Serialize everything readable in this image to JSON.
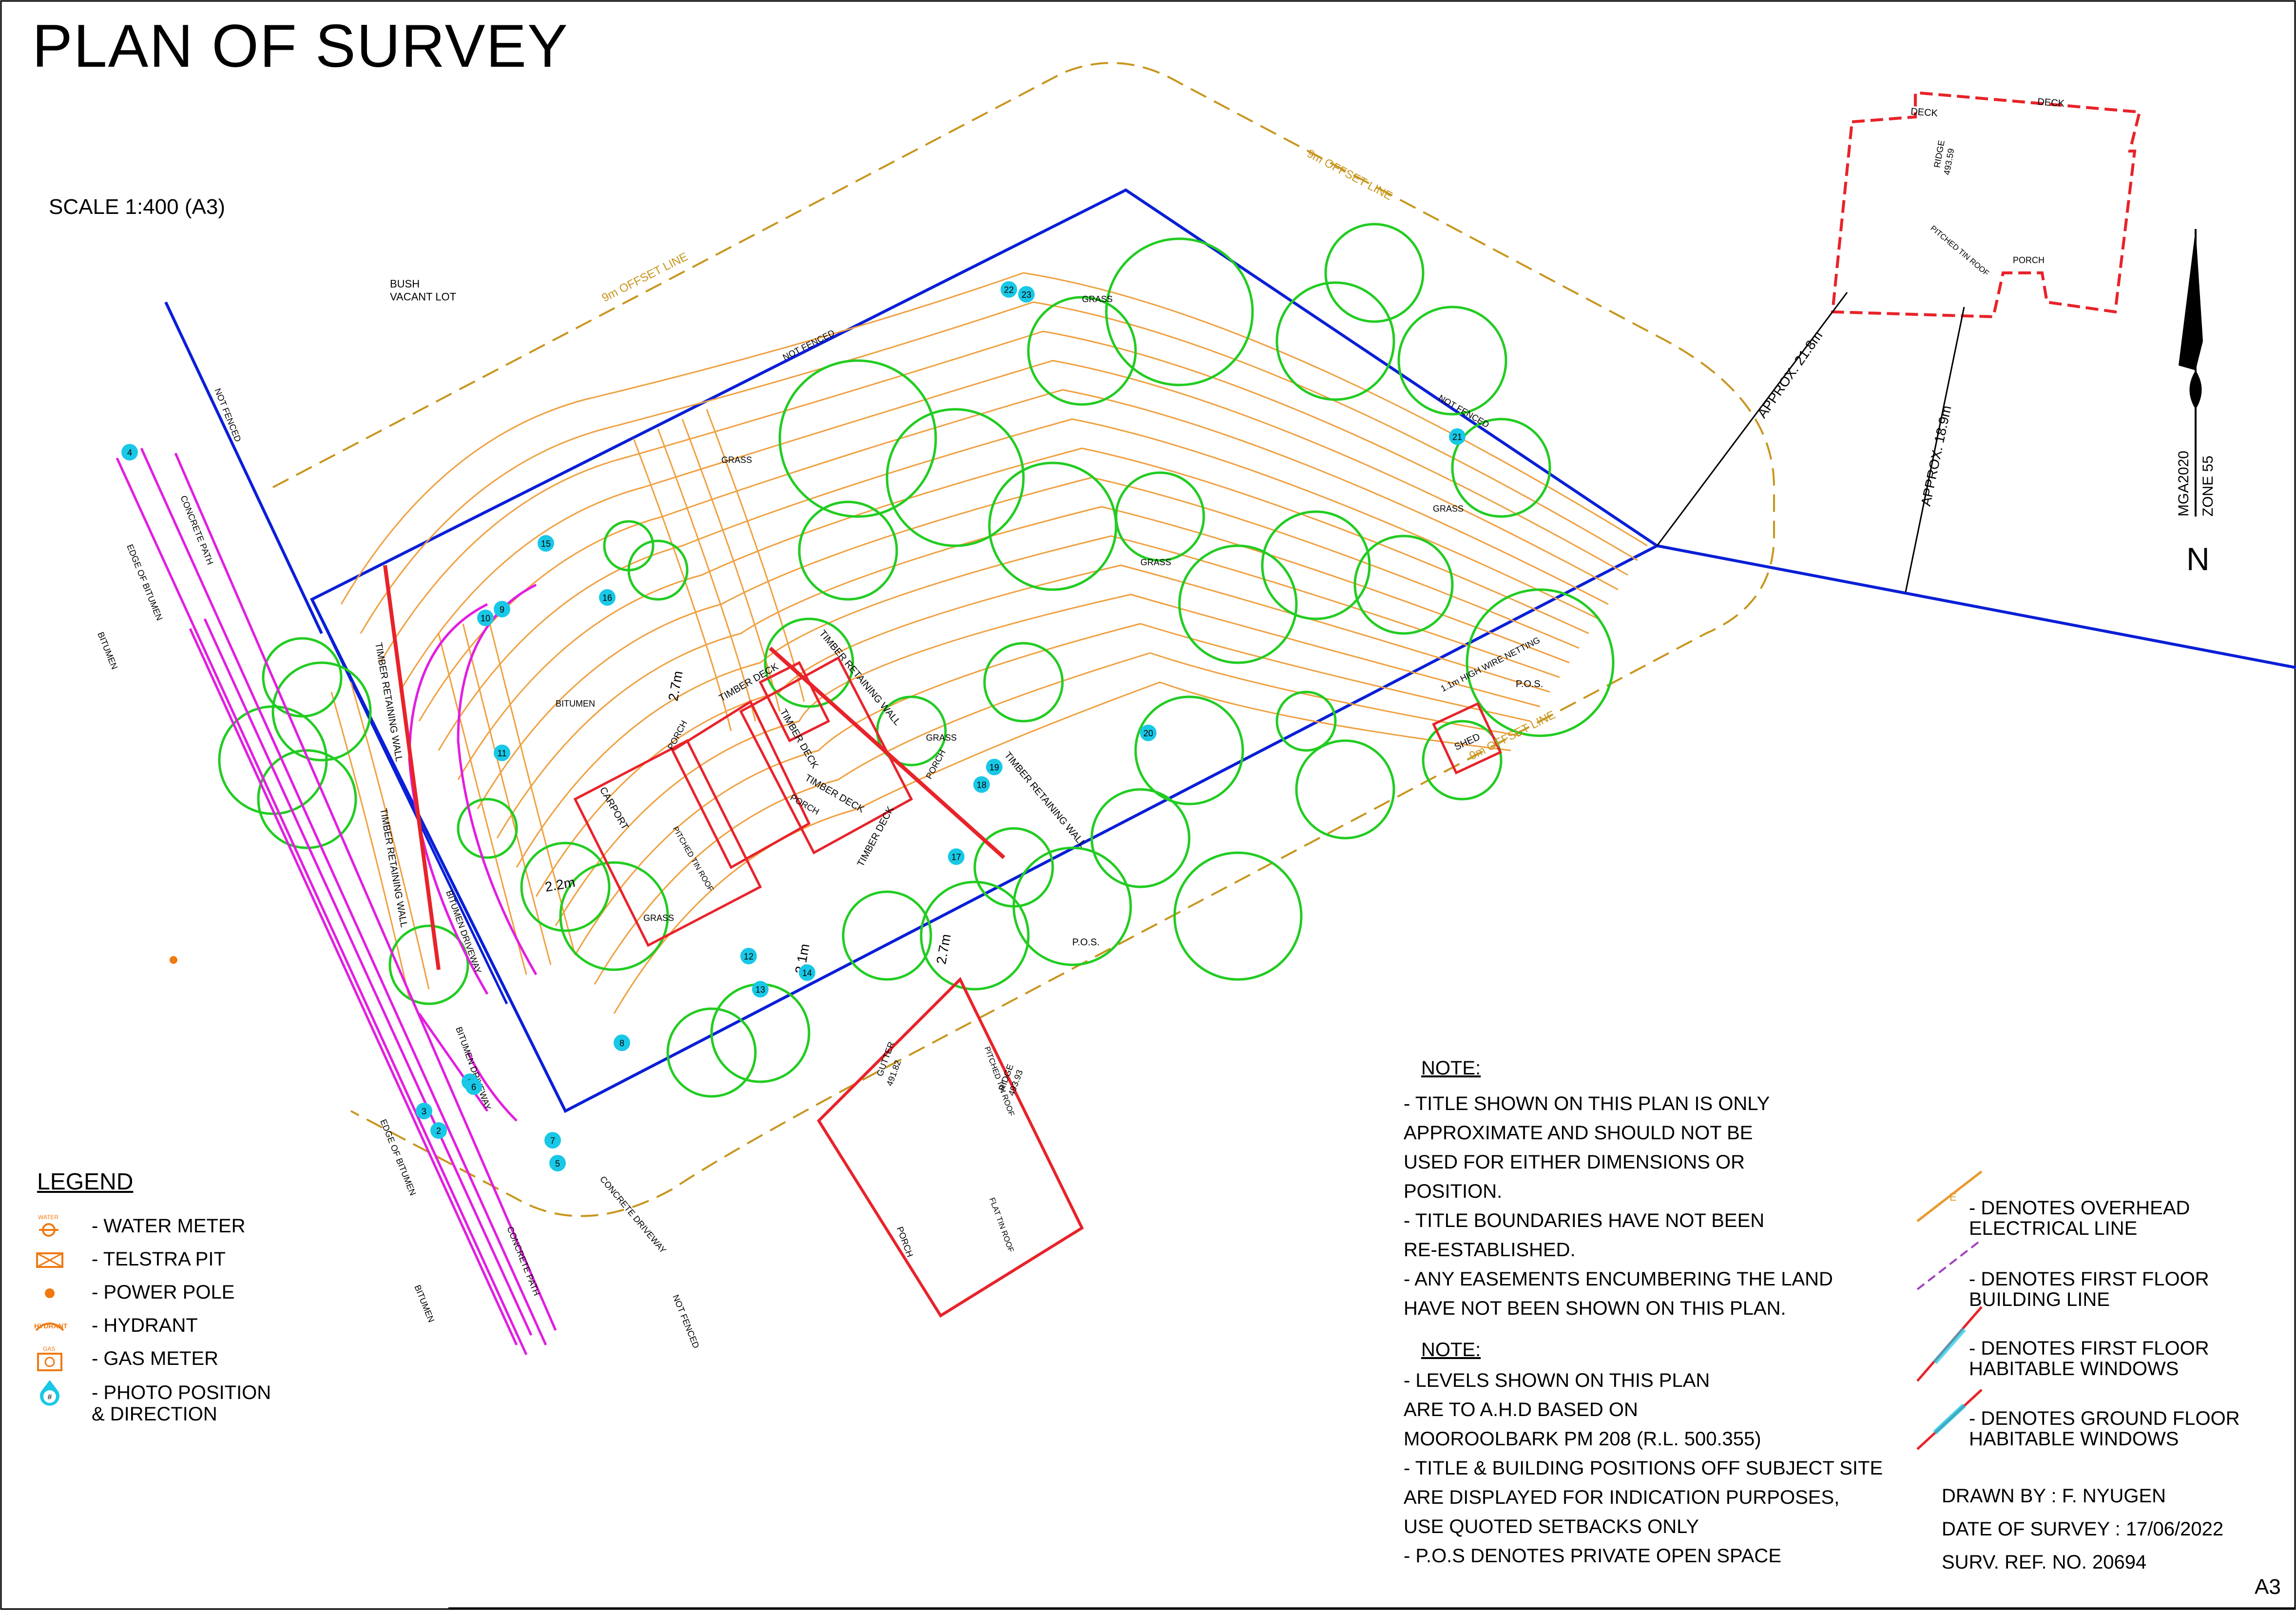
{
  "title": "PLAN OF SURVEY",
  "scale": "SCALE  1:400 (A3)",
  "north": {
    "letter": "N",
    "datum": "MGA2020",
    "zone": "ZONE 55"
  },
  "colors": {
    "boundary": "#0a1fd6",
    "contour": "#f0a040",
    "tree": "#22cc22",
    "building": "#e8232a",
    "path": "#e21ee0",
    "offset": "#c8961e",
    "photo": "#18c8e6",
    "text": "#000000"
  },
  "map_labels": {
    "bush_vacant_lot": "BUSH\nVACANT LOT",
    "offset_line": "9m OFFSET LINE",
    "not_fenced": "NOT FENCED",
    "grass": "GRASS",
    "bitumen": "BITUMEN",
    "pos": "P.O.S.",
    "shed": "SHED",
    "carport": "CARPORT",
    "porch": "PORCH",
    "timber_deck": "TIMBER DECK",
    "timber_retaining_wall": "TIMBER RETAINING WALL",
    "edge_of_bitumen": "EDGE OF BITUMEN",
    "concrete_path": "CONCRETE PATH",
    "concrete_driveway": "CONCRETE DRIVEWAY",
    "bitumen_driveway": "BITUMEN DRIVEWAY",
    "deck": "DECK",
    "ridge": "RIDGE",
    "gutter": "GUTTER",
    "pitched_tin_roof": "PITCHED TIN ROOF",
    "flat_tin_roof": "FLAT TIN ROOF",
    "approx_21": "APPROX. 21.8m",
    "approx_18": "APPROX. 18.9m",
    "wire_netting": "1.1m HIGH WIRE NETTING",
    "dim_27": "2.7m",
    "dim_21": "2.1m",
    "dim_22": "2.2m",
    "ridge_level": "493.59",
    "gutter_level": "491.82",
    "ridge_level_2": "493.93"
  },
  "photo_markers": [
    "1",
    "2",
    "3",
    "4",
    "5",
    "6",
    "7",
    "8",
    "9",
    "10",
    "11",
    "12",
    "13",
    "14",
    "15",
    "16",
    "17",
    "18",
    "19",
    "20",
    "21",
    "22",
    "23"
  ],
  "legend": {
    "title": "LEGEND",
    "items": [
      {
        "label": "- WATER METER",
        "icon": "water-meter-icon",
        "tag": "WATER"
      },
      {
        "label": "- TELSTRA PIT",
        "icon": "telstra-pit-icon"
      },
      {
        "label": "- POWER POLE",
        "icon": "power-pole-icon"
      },
      {
        "label": "- HYDRANT",
        "icon": "hydrant-icon",
        "tag": "HYDRANT"
      },
      {
        "label": "- GAS METER",
        "icon": "gas-meter-icon",
        "tag": "GAS"
      },
      {
        "label": "- PHOTO POSITION\n  & DIRECTION",
        "icon": "photo-position-icon",
        "tag": "#"
      }
    ]
  },
  "notes": [
    {
      "heading": "NOTE:",
      "items": [
        "- TITLE SHOWN ON THIS PLAN IS ONLY\n   APPROXIMATE AND SHOULD NOT BE\n   USED FOR EITHER DIMENSIONS OR\n   POSITION.",
        "- TITLE BOUNDARIES HAVE NOT BEEN\n   RE-ESTABLISHED.",
        "- ANY EASEMENTS ENCUMBERING THE LAND\n   HAVE NOT BEEN SHOWN ON THIS PLAN."
      ]
    },
    {
      "heading": "NOTE:",
      "items": [
        "- LEVELS SHOWN ON THIS PLAN\n   ARE TO A.H.D BASED ON\n   MOOROOLBARK PM 208 (R.L. 500.355)",
        "- TITLE & BUILDING POSITIONS OFF SUBJECT SITE\n   ARE DISPLAYED FOR INDICATION PURPOSES,\n   USE QUOTED SETBACKS ONLY",
        "- P.O.S DENOTES PRIVATE OPEN SPACE"
      ]
    }
  ],
  "line_key": [
    {
      "label": "- DENOTES OVERHEAD\n  ELECTRICAL LINE",
      "icon": "overhead-electrical-line-icon",
      "tag": "E"
    },
    {
      "label": "- DENOTES FIRST FLOOR\n  BUILDING LINE",
      "icon": "first-floor-building-line-icon"
    },
    {
      "label": "- DENOTES FIRST FLOOR\n  HABITABLE WINDOWS",
      "icon": "first-floor-window-icon"
    },
    {
      "label": "- DENOTES GROUND FLOOR\n  HABITABLE WINDOWS",
      "icon": "ground-floor-window-icon"
    }
  ],
  "drawn_by": "DRAWN BY : F. NYUGEN",
  "date_of_survey": "DATE OF SURVEY : 17/06/2022",
  "surv_ref": "SURV. REF. NO.   20694",
  "sheet_size": "A3"
}
